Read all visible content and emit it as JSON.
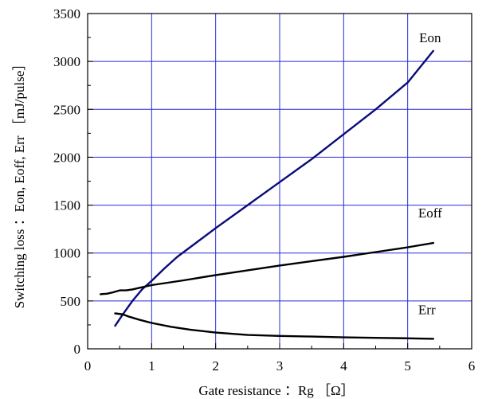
{
  "chart_data": {
    "type": "line",
    "title": "",
    "xlabel": "Gate resistance ：Rg ［Ω］",
    "ylabel": "Switching loss ：Eon, Eoff, Err ［mJ/pulse］",
    "xlim": [
      0,
      6
    ],
    "ylim": [
      0,
      3500
    ],
    "x_ticks": [
      0,
      1,
      2,
      3,
      4,
      5,
      6
    ],
    "y_ticks": [
      0,
      500,
      1000,
      1500,
      2000,
      2500,
      3000,
      3500
    ],
    "x_tick_labels": [
      "0",
      "1",
      "2",
      "3",
      "4",
      "5",
      "6"
    ],
    "y_tick_labels": [
      "0",
      "500",
      "1000",
      "1500",
      "2000",
      "2500",
      "3000",
      "3500"
    ],
    "grid": true,
    "grid_color": "#2b2bd6",
    "series": [
      {
        "name": "Eon",
        "color": "#0a0a78",
        "label_at": [
          5.35,
          3250
        ],
        "points": [
          [
            0.43,
            240
          ],
          [
            0.55,
            360
          ],
          [
            0.7,
            500
          ],
          [
            0.85,
            620
          ],
          [
            1.0,
            710
          ],
          [
            1.2,
            840
          ],
          [
            1.4,
            960
          ],
          [
            1.7,
            1110
          ],
          [
            2.0,
            1260
          ],
          [
            2.5,
            1500
          ],
          [
            3.0,
            1740
          ],
          [
            3.5,
            1980
          ],
          [
            4.0,
            2240
          ],
          [
            4.5,
            2500
          ],
          [
            5.0,
            2780
          ],
          [
            5.4,
            3110
          ]
        ]
      },
      {
        "name": "Eoff",
        "color": "#000000",
        "label_at": [
          5.35,
          1420
        ],
        "points": [
          [
            0.2,
            570
          ],
          [
            0.3,
            575
          ],
          [
            0.4,
            590
          ],
          [
            0.5,
            610
          ],
          [
            0.6,
            610
          ],
          [
            0.7,
            620
          ],
          [
            0.8,
            635
          ],
          [
            1.0,
            665
          ],
          [
            1.5,
            715
          ],
          [
            2.0,
            770
          ],
          [
            2.5,
            820
          ],
          [
            3.0,
            870
          ],
          [
            3.5,
            915
          ],
          [
            4.0,
            960
          ],
          [
            4.5,
            1010
          ],
          [
            5.0,
            1060
          ],
          [
            5.4,
            1105
          ]
        ]
      },
      {
        "name": "Err",
        "color": "#000000",
        "label_at": [
          5.3,
          410
        ],
        "points": [
          [
            0.43,
            370
          ],
          [
            0.55,
            360
          ],
          [
            0.65,
            335
          ],
          [
            0.8,
            305
          ],
          [
            1.0,
            270
          ],
          [
            1.3,
            230
          ],
          [
            1.6,
            200
          ],
          [
            2.0,
            170
          ],
          [
            2.5,
            145
          ],
          [
            3.0,
            135
          ],
          [
            3.5,
            128
          ],
          [
            4.0,
            120
          ],
          [
            4.5,
            115
          ],
          [
            5.0,
            110
          ],
          [
            5.4,
            105
          ]
        ]
      }
    ]
  }
}
